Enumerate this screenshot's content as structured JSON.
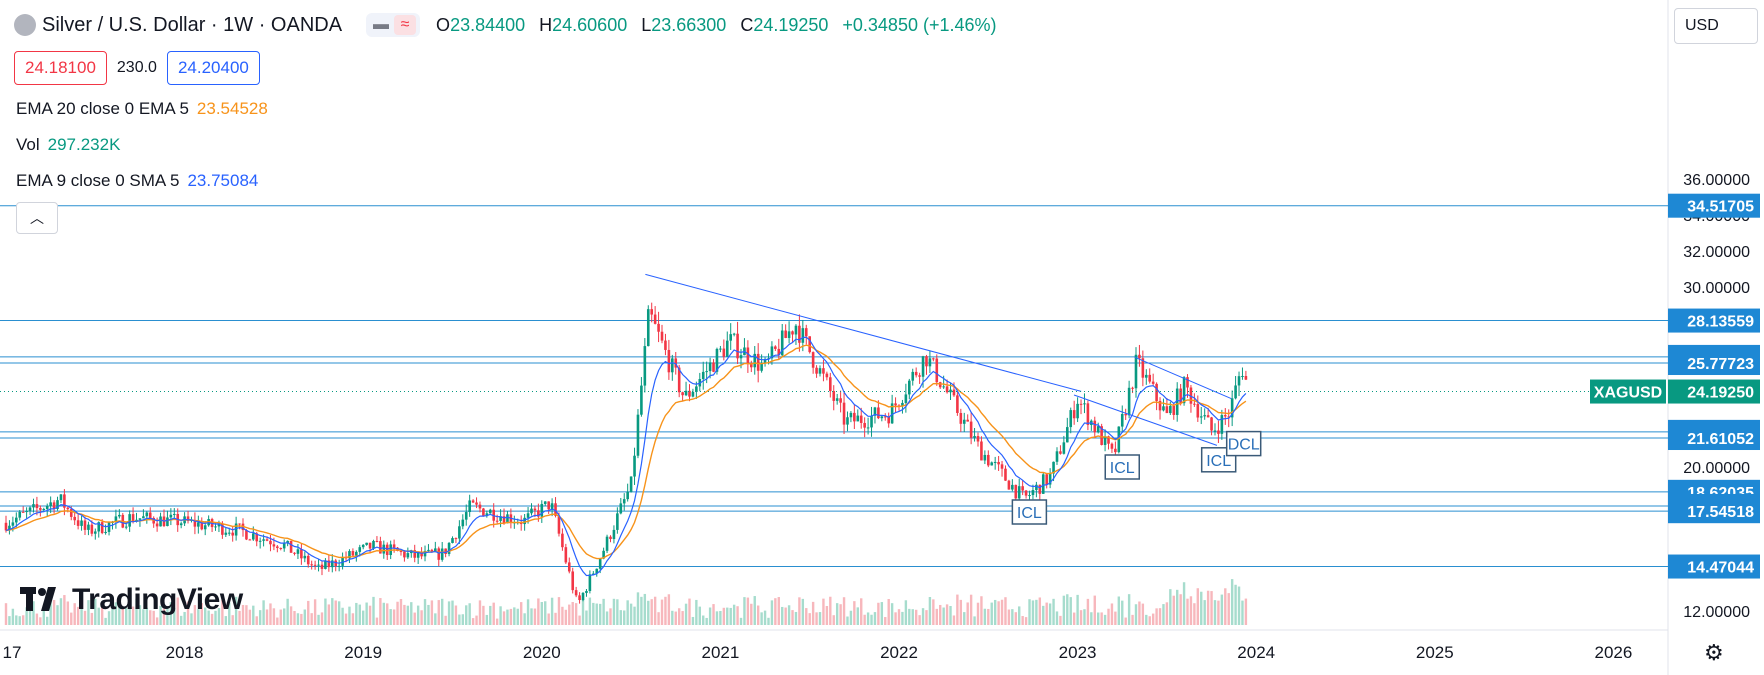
{
  "header": {
    "title": "Silver / U.S. Dollar · 1W · OANDA",
    "ohlc": {
      "open_label": "O",
      "open": "23.84400",
      "high_label": "H",
      "high": "24.60600",
      "low_label": "L",
      "low": "23.66300",
      "close_label": "C",
      "close": "24.19250",
      "change": "+0.34850 (+1.46%)"
    },
    "sell_price": "24.18100",
    "spread": "230.0",
    "buy_price": "24.20400",
    "currency": "USD",
    "collapse_icon": "chevron-up-icon"
  },
  "indicators": [
    {
      "label": "EMA 20 close 0 EMA 5",
      "value": "23.54528",
      "color": "#f7931a"
    },
    {
      "label": "Vol",
      "value": "297.232K",
      "color": "#089981"
    },
    {
      "label": "EMA 9 close 0 SMA 5",
      "value": "23.75084",
      "color": "#2962ff"
    }
  ],
  "colors": {
    "up": "#089981",
    "down": "#f23645",
    "ema20": "#f7931a",
    "ema9": "#2962ff",
    "level_line": "#2a8fd0",
    "price_badge": "#089981",
    "level_badge": "#1e88d4"
  },
  "brand": "TradingView",
  "settings_icon": "gear-icon",
  "chart_data": {
    "type": "candlestick",
    "symbol": "XAGUSD",
    "last_price": "24.19250",
    "y_axis": {
      "ticks": [
        "36.00000",
        "34.00000",
        "32.00000",
        "30.00000",
        "20.00000",
        "12.00000"
      ],
      "ylim": [
        11.5,
        36.5
      ]
    },
    "x_axis": {
      "ticks": [
        "17",
        "2018",
        "2019",
        "2020",
        "2021",
        "2022",
        "2023",
        "2024",
        "2025",
        "2026"
      ]
    },
    "horizontal_levels": [
      "34.51705",
      "28.13559",
      "26.11584",
      "25.77723",
      "21.95127",
      "21.61052",
      "18.62035",
      "17.83576",
      "17.54518",
      "14.47044"
    ],
    "trendlines": [
      {
        "from": [
          "2020.58",
          30.7
        ],
        "to": [
          "2023.02",
          24.2
        ]
      },
      {
        "from": [
          "2023.32",
          26.1
        ],
        "to": [
          "2023.86",
          23.8
        ]
      },
      {
        "from": [
          "2022.98",
          24.0
        ],
        "to": [
          "2023.78",
          21.2
        ]
      }
    ],
    "annotations": [
      {
        "text": "ICL",
        "x": "2022.73",
        "price": 17.5
      },
      {
        "text": "ICL",
        "x": "2023.25",
        "price": 20.0
      },
      {
        "text": "ICL",
        "x": "2023.79",
        "price": 20.4
      },
      {
        "text": "DCL",
        "x": "2023.93",
        "price": 21.3
      }
    ],
    "key_prices": [
      {
        "year": 2017.0,
        "price": 16.9
      },
      {
        "year": 2017.3,
        "price": 18.2
      },
      {
        "year": 2017.45,
        "price": 16.4
      },
      {
        "year": 2017.7,
        "price": 17.2
      },
      {
        "year": 2017.95,
        "price": 17.0
      },
      {
        "year": 2018.3,
        "price": 16.5
      },
      {
        "year": 2018.55,
        "price": 15.7
      },
      {
        "year": 2018.75,
        "price": 14.3
      },
      {
        "year": 2019.05,
        "price": 15.6
      },
      {
        "year": 2019.3,
        "price": 15.0
      },
      {
        "year": 2019.45,
        "price": 15.2
      },
      {
        "year": 2019.6,
        "price": 17.8
      },
      {
        "year": 2019.9,
        "price": 17.0
      },
      {
        "year": 2020.05,
        "price": 18.0
      },
      {
        "year": 2020.2,
        "price": 12.3
      },
      {
        "year": 2020.35,
        "price": 15.5
      },
      {
        "year": 2020.5,
        "price": 19.0
      },
      {
        "year": 2020.6,
        "price": 28.5
      },
      {
        "year": 2020.8,
        "price": 23.8
      },
      {
        "year": 2021.05,
        "price": 27.0
      },
      {
        "year": 2021.25,
        "price": 25.5
      },
      {
        "year": 2021.42,
        "price": 28.0
      },
      {
        "year": 2021.7,
        "price": 22.5
      },
      {
        "year": 2021.95,
        "price": 23.0
      },
      {
        "year": 2022.15,
        "price": 26.2
      },
      {
        "year": 2022.45,
        "price": 21.0
      },
      {
        "year": 2022.7,
        "price": 18.2
      },
      {
        "year": 2022.85,
        "price": 19.5
      },
      {
        "year": 2023.0,
        "price": 23.8
      },
      {
        "year": 2023.2,
        "price": 20.5
      },
      {
        "year": 2023.33,
        "price": 25.8
      },
      {
        "year": 2023.5,
        "price": 22.8
      },
      {
        "year": 2023.6,
        "price": 24.5
      },
      {
        "year": 2023.75,
        "price": 22.0
      },
      {
        "year": 2023.85,
        "price": 23.0
      },
      {
        "year": 2023.92,
        "price": 25.6
      },
      {
        "year": 2023.96,
        "price": 24.2
      }
    ]
  }
}
